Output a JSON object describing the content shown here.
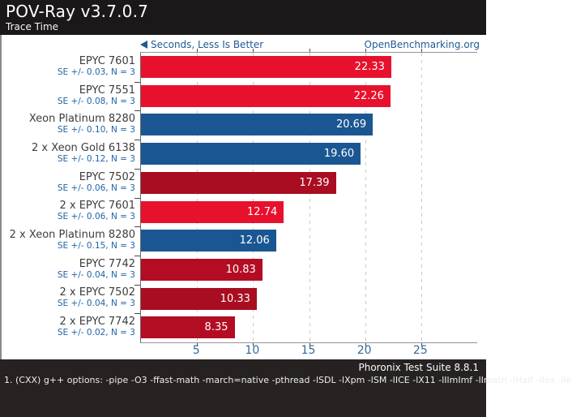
{
  "header": {
    "title": "POV-Ray v3.7.0.7",
    "subtitle": "Trace Time"
  },
  "subheader": {
    "axis_note": "Seconds, Less Is Better",
    "link": "OpenBenchmarking.org"
  },
  "chart_data": {
    "type": "bar",
    "orientation": "horizontal",
    "title": "POV-Ray v3.7.0.7",
    "subtitle": "Trace Time",
    "xlabel": "Seconds, Less Is Better",
    "xlim": [
      0,
      30
    ],
    "xticks": [
      5,
      10,
      15,
      20,
      25
    ],
    "grid": "dashed-vertical",
    "bars": [
      {
        "label": "EPYC 7601",
        "se": "SE +/- 0.03, N = 3",
        "value": 22.33,
        "value_label": "22.33",
        "color": "#e8112d"
      },
      {
        "label": "EPYC 7551",
        "se": "SE +/- 0.08, N = 3",
        "value": 22.26,
        "value_label": "22.26",
        "color": "#e8112d"
      },
      {
        "label": "Xeon Platinum 8280",
        "se": "SE +/- 0.10, N = 3",
        "value": 20.69,
        "value_label": "20.69",
        "color": "#1a5792"
      },
      {
        "label": "2 x Xeon Gold 6138",
        "se": "SE +/- 0.12, N = 3",
        "value": 19.6,
        "value_label": "19.60",
        "color": "#1a5792"
      },
      {
        "label": "EPYC 7502",
        "se": "SE +/- 0.06, N = 3",
        "value": 17.39,
        "value_label": "17.39",
        "color": "#a90d21"
      },
      {
        "label": "2 x EPYC 7601",
        "se": "SE +/- 0.06, N = 3",
        "value": 12.74,
        "value_label": "12.74",
        "color": "#e8112d"
      },
      {
        "label": "2 x Xeon Platinum 8280",
        "se": "SE +/- 0.15, N = 3",
        "value": 12.06,
        "value_label": "12.06",
        "color": "#1a5792"
      },
      {
        "label": "EPYC 7742",
        "se": "SE +/- 0.04, N = 3",
        "value": 10.83,
        "value_label": "10.83",
        "color": "#b30d24"
      },
      {
        "label": "2 x EPYC 7502",
        "se": "SE +/- 0.04, N = 3",
        "value": 10.33,
        "value_label": "10.33",
        "color": "#a90d21"
      },
      {
        "label": "2 x EPYC 7742",
        "se": "SE +/- 0.02, N = 3",
        "value": 8.35,
        "value_label": "8.35",
        "color": "#b30d24"
      }
    ]
  },
  "footer": {
    "suite": "Phoronix Test Suite 8.8.1",
    "note": "1. (CXX) g++ options: -pipe -O3 -ffast-math -march=native -pthread -lSDL -lXpm -lSM -lICE -lX11 -lIlmImf -lImath -lHalf -lIex -lIe"
  },
  "colors": {
    "header_bg": "#1a1818",
    "footer_bg": "#262222",
    "bright_red": "#e8112d",
    "dark_red": "#a90d21",
    "crimson": "#b30d24",
    "blue_bar": "#1a5792",
    "link_blue": "#1f5a96",
    "tick_blue": "#35689f"
  }
}
